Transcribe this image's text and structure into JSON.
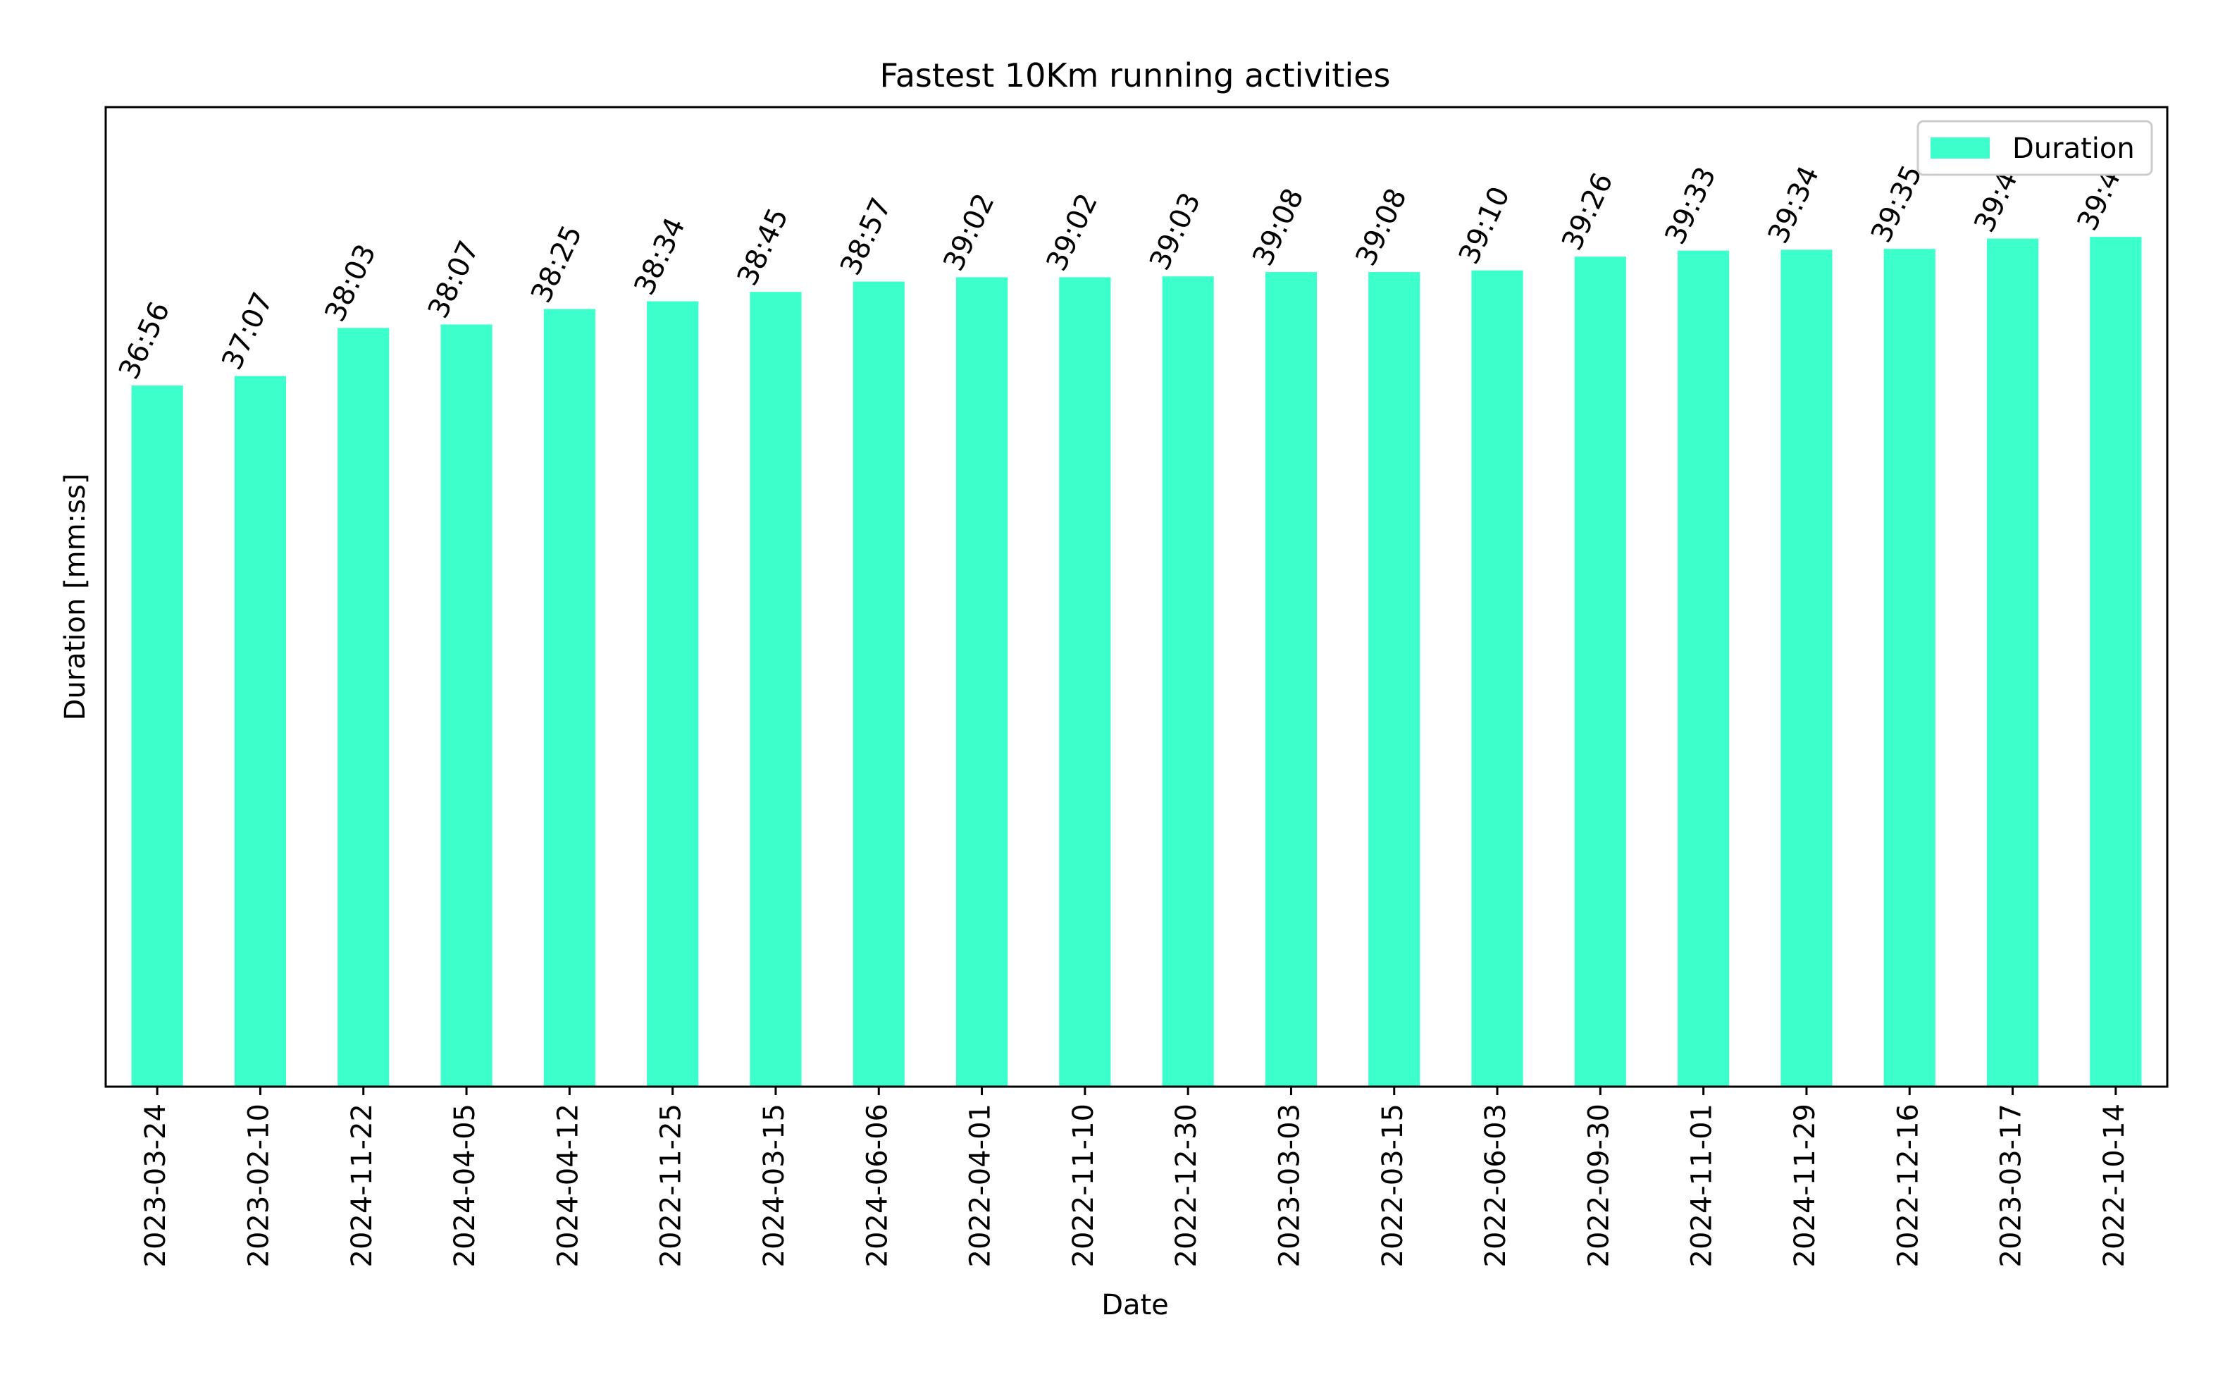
{
  "chart_data": {
    "type": "bar",
    "title": "Fastest 10Km running activities",
    "xlabel": "Date",
    "ylabel": "Duration [mm:ss]",
    "categories": [
      "2023-03-24",
      "2023-02-10",
      "2024-11-22",
      "2024-04-05",
      "2024-04-12",
      "2022-11-25",
      "2024-03-15",
      "2024-06-06",
      "2022-04-01",
      "2022-11-10",
      "2022-12-30",
      "2023-03-03",
      "2022-03-15",
      "2022-06-03",
      "2022-09-30",
      "2024-11-01",
      "2024-11-29",
      "2022-12-16",
      "2023-03-17",
      "2022-10-14"
    ],
    "series": [
      {
        "name": "Duration",
        "labels": [
          "36:56",
          "37:07",
          "38:03",
          "38:07",
          "38:25",
          "38:34",
          "38:45",
          "38:57",
          "39:02",
          "39:02",
          "39:03",
          "39:08",
          "39:08",
          "39:10",
          "39:26",
          "39:33",
          "39:34",
          "39:35",
          "39:47",
          "39:49"
        ],
        "values": [
          2216,
          2227,
          2283,
          2287,
          2305,
          2314,
          2325,
          2337,
          2342,
          2342,
          2343,
          2348,
          2348,
          2350,
          2366,
          2373,
          2374,
          2375,
          2387,
          2389
        ],
        "unit": "seconds"
      }
    ],
    "ylim": [
      1400,
      2540
    ],
    "yticks_visible": false,
    "grid": false,
    "legend_position": "top-right",
    "colors": {
      "bar": "#3dffcc",
      "axes": "#000000",
      "background": "#ffffff"
    }
  }
}
